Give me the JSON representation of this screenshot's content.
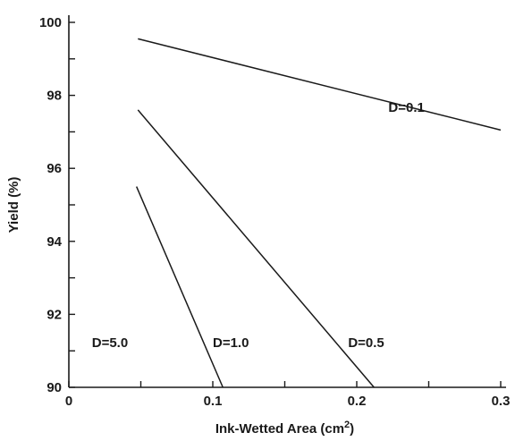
{
  "chart_data": {
    "type": "line",
    "title": "",
    "xlabel": "Ink-Wetted Area (cm",
    "xlabel_sup": "2",
    "xlabel_end": ")",
    "ylabel": "Yield (%)",
    "xlim": [
      0,
      0.3
    ],
    "ylim": [
      90,
      100
    ],
    "grid": false,
    "x_ticks": [
      0,
      0.05,
      0.1,
      0.15,
      0.2,
      0.25,
      0.3
    ],
    "x_tick_labels": [
      "0",
      "",
      "0.1",
      "",
      "0.2",
      "",
      "0.3"
    ],
    "y_ticks": [
      90,
      91,
      92,
      93,
      94,
      95,
      96,
      97,
      98,
      99,
      100
    ],
    "y_tick_labels": [
      "90",
      "",
      "92",
      "",
      "94",
      "",
      "96",
      "",
      "98",
      "",
      "100"
    ],
    "series": [
      {
        "name": "D=0.1",
        "x": [
          0.048,
          0.3
        ],
        "y": [
          99.55,
          97.05
        ]
      },
      {
        "name": "D=0.5",
        "x": [
          0.048,
          0.212
        ],
        "y": [
          97.6,
          90.0
        ]
      },
      {
        "name": "D=1.0",
        "x": [
          0.047,
          0.107
        ],
        "y": [
          95.5,
          90.0
        ]
      },
      {
        "name": "D=5.0",
        "x": [],
        "y": []
      }
    ],
    "annotations": [
      {
        "text": "D=0.1",
        "x": 0.222,
        "y": 97.55
      },
      {
        "text": "D=0.5",
        "x": 0.194,
        "y": 91.1
      },
      {
        "text": "D=1.0",
        "x": 0.1,
        "y": 91.1
      },
      {
        "text": "D=5.0",
        "x": 0.016,
        "y": 91.1
      }
    ]
  }
}
